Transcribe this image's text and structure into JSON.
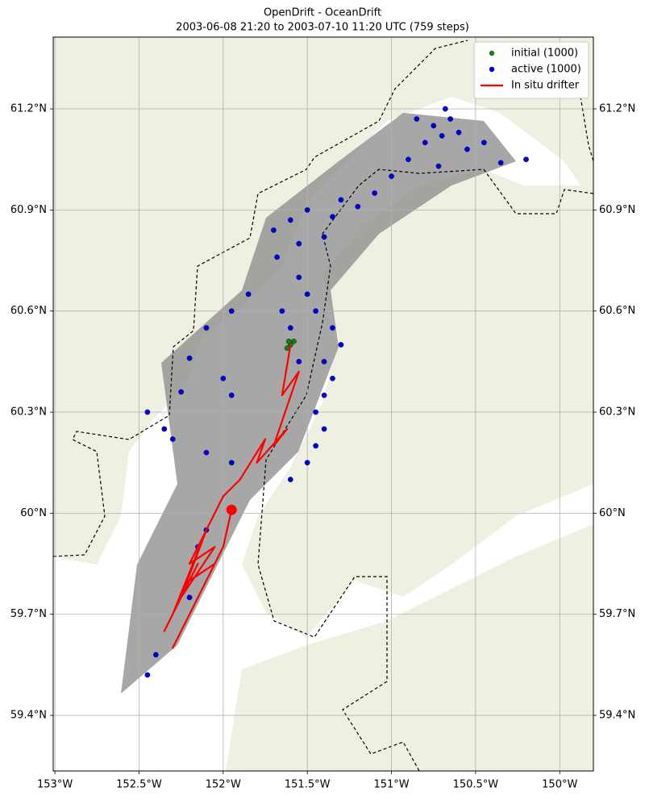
{
  "chart_data": {
    "type": "scatter",
    "title": "OpenDrift - OceanDrift",
    "subtitle": "2003-06-08 21:20 to 2003-07-10 11:20 UTC (759 steps)",
    "xlim": [
      -153.01,
      -149.8
    ],
    "ylim": [
      59.235,
      61.413
    ],
    "xticks": [
      {
        "value": -153,
        "label": "153°W"
      },
      {
        "value": -152.5,
        "label": "152.5°W"
      },
      {
        "value": -152,
        "label": "152°W"
      },
      {
        "value": -151.5,
        "label": "151.5°W"
      },
      {
        "value": -151,
        "label": "151°W"
      },
      {
        "value": -150.5,
        "label": "150.5°W"
      },
      {
        "value": -150,
        "label": "150°W"
      }
    ],
    "yticks": [
      {
        "value": 59.4,
        "label": "59.4°N"
      },
      {
        "value": 59.7,
        "label": "59.7°N"
      },
      {
        "value": 60,
        "label": "60°N"
      },
      {
        "value": 60.3,
        "label": "60.3°N"
      },
      {
        "value": 60.6,
        "label": "60.6°N"
      },
      {
        "value": 60.9,
        "label": "60.9°N"
      },
      {
        "value": 61.2,
        "label": "61.2°N"
      }
    ],
    "grid": true,
    "legend": "upper right",
    "series": [
      {
        "name": "initial (1000)",
        "type": "scatter",
        "color": "#1a7a1a",
        "x": [
          -151.6,
          -151.62,
          -151.58,
          -151.61
        ],
        "y": [
          60.5,
          60.49,
          60.51,
          60.51
        ]
      },
      {
        "name": "active (1000)",
        "type": "scatter",
        "color": "#0000dd",
        "x": [
          -150.75,
          -150.7,
          -150.65,
          -150.6,
          -150.8,
          -150.55,
          -150.9,
          -150.45,
          -150.35,
          -150.2,
          -150.68,
          -150.85,
          -151.0,
          -150.72,
          -151.1,
          -151.3,
          -151.5,
          -151.6,
          -151.7,
          -151.4,
          -151.55,
          -151.35,
          -151.2,
          -151.68,
          -151.55,
          -151.5,
          -151.45,
          -151.35,
          -151.3,
          -151.4,
          -151.35,
          -151.4,
          -151.45,
          -151.4,
          -151.45,
          -151.5,
          -151.6,
          -151.55,
          -151.6,
          -151.65,
          -151.85,
          -151.95,
          -152.1,
          -152.2,
          -152.0,
          -152.25,
          -151.95,
          -152.35,
          -152.3,
          -152.1,
          -151.95,
          -152.45,
          -152.45,
          -152.4,
          -152.2,
          -152.1,
          -152.15
        ],
        "y": [
          61.15,
          61.12,
          61.17,
          61.13,
          61.1,
          61.08,
          61.05,
          61.1,
          61.04,
          61.05,
          61.2,
          61.17,
          61.0,
          61.03,
          60.95,
          60.93,
          60.9,
          60.87,
          60.84,
          60.82,
          60.8,
          60.88,
          60.91,
          60.76,
          60.7,
          60.65,
          60.6,
          60.55,
          60.5,
          60.45,
          60.4,
          60.35,
          60.3,
          60.25,
          60.2,
          60.15,
          60.1,
          60.45,
          60.55,
          60.6,
          60.65,
          60.6,
          60.55,
          60.46,
          60.4,
          60.36,
          60.35,
          60.25,
          60.22,
          60.18,
          60.15,
          60.3,
          59.52,
          59.58,
          59.75,
          59.95,
          59.9
        ]
      },
      {
        "name": "In situ drifter",
        "type": "line",
        "color": "#ff0000",
        "x": [
          -151.6,
          -151.65,
          -151.55,
          -151.7,
          -151.62,
          -151.8,
          -151.75,
          -151.9,
          -152.0,
          -152.1,
          -152.2,
          -152.05,
          -152.25,
          -152.1,
          -152.3,
          -152.15,
          -152.35,
          -152.2,
          -152.05,
          -152.3,
          -152.15,
          -152.0,
          -151.95
        ],
        "y": [
          60.5,
          60.35,
          60.42,
          60.2,
          60.25,
          60.15,
          60.22,
          60.1,
          60.05,
          59.95,
          59.85,
          59.9,
          59.75,
          59.95,
          59.7,
          59.85,
          59.65,
          59.8,
          59.85,
          59.6,
          59.75,
          59.9,
          60.01
        ]
      }
    ]
  }
}
